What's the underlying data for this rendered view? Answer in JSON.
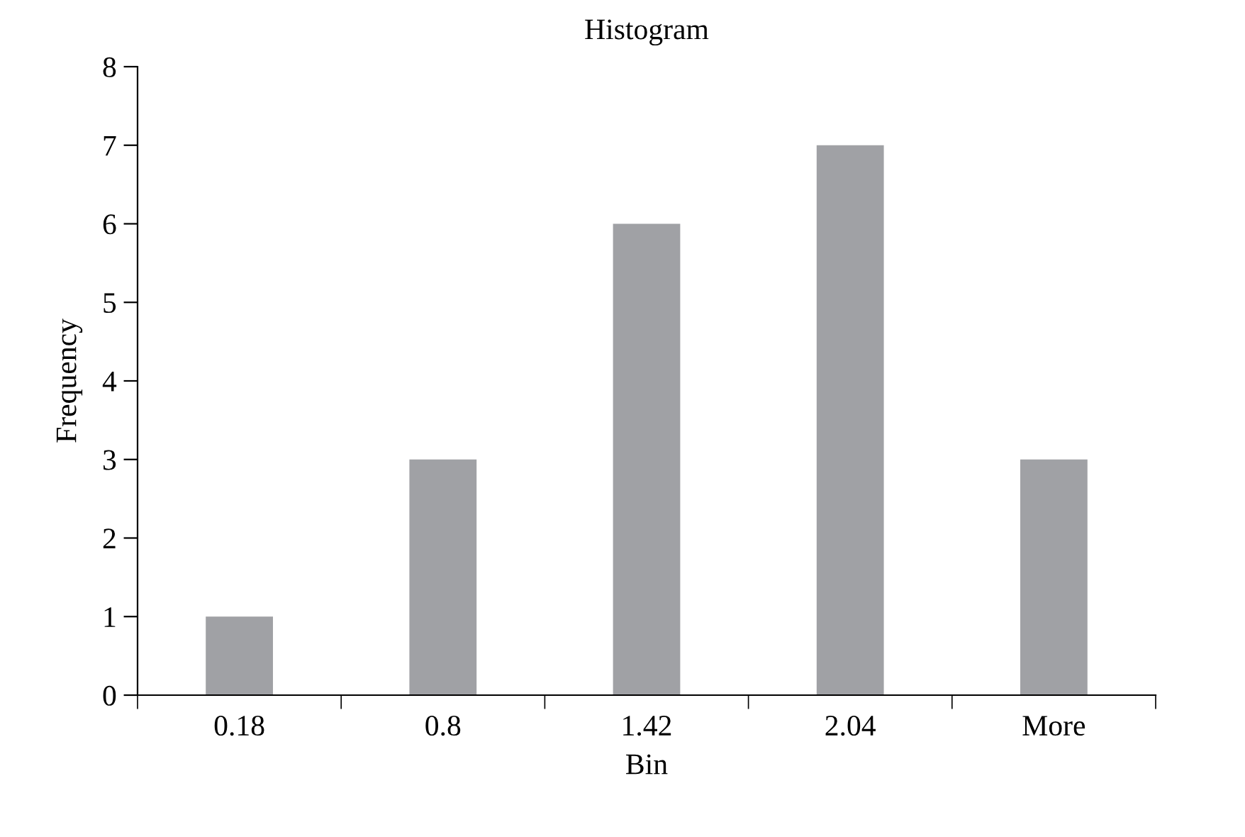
{
  "chart_data": {
    "type": "bar",
    "title": "Histogram",
    "xlabel": "Bin",
    "ylabel": "Frequency",
    "categories": [
      "0.18",
      "0.8",
      "1.42",
      "2.04",
      "More"
    ],
    "values": [
      1,
      3,
      6,
      7,
      3
    ],
    "color": "#a0a1a5",
    "ylim": [
      0,
      8
    ],
    "yticks": [
      0,
      1,
      2,
      3,
      4,
      5,
      6,
      7,
      8
    ],
    "grid": false,
    "legend": false
  }
}
